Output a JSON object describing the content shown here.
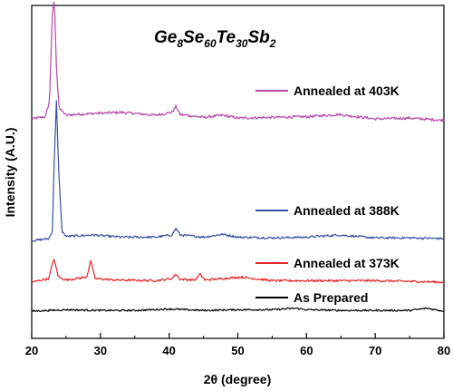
{
  "chart_data": {
    "type": "line",
    "title": {
      "base": [
        "Ge",
        "Se",
        "Te",
        "Sb"
      ],
      "subs": [
        "8",
        "60",
        "30",
        "2"
      ]
    },
    "xlabel": "2θ (degree)",
    "ylabel": "Intensity (A.U.)",
    "xlim": [
      20,
      80
    ],
    "xticks": [
      20,
      30,
      40,
      50,
      60,
      70,
      80
    ],
    "y_ticks_shown": false,
    "grid": false,
    "legend_position": "inline, right of each trace",
    "series": [
      {
        "name": "Annealed at 403K",
        "color": "#b547a8",
        "baseline": 2.7,
        "noise": 0.018,
        "x": [
          20,
          22,
          22.6,
          23.0,
          23.3,
          23.6,
          24.0,
          25,
          28,
          33,
          38,
          40.4,
          41.0,
          41.6,
          45,
          47.8,
          50,
          55,
          60,
          64.7,
          70,
          75,
          80
        ],
        "y": [
          2.7,
          2.73,
          2.95,
          4.15,
          4.33,
          3.4,
          2.85,
          2.75,
          2.77,
          2.79,
          2.75,
          2.79,
          2.87,
          2.76,
          2.72,
          2.75,
          2.71,
          2.72,
          2.73,
          2.76,
          2.7,
          2.71,
          2.68
        ]
      },
      {
        "name": "Annealed at 388K",
        "color": "#3a4fa0",
        "baseline": 1.05,
        "noise": 0.015,
        "x": [
          20,
          22.5,
          23.0,
          23.3,
          23.6,
          23.9,
          24.4,
          25,
          29,
          33,
          38,
          40.4,
          41.0,
          41.6,
          45,
          47.8,
          50,
          55,
          60,
          64.7,
          70,
          75,
          80
        ],
        "y": [
          1.02,
          1.05,
          1.15,
          2.2,
          2.95,
          2.05,
          1.15,
          1.08,
          1.1,
          1.07,
          1.07,
          1.1,
          1.19,
          1.1,
          1.07,
          1.11,
          1.07,
          1.06,
          1.07,
          1.1,
          1.06,
          1.06,
          1.05
        ]
      },
      {
        "name": "Annealed at 373K",
        "color": "#e2262b",
        "baseline": 0.48,
        "noise": 0.015,
        "x": [
          20,
          22.5,
          23.2,
          23.9,
          25,
          28.0,
          28.6,
          29.2,
          32,
          38,
          40.4,
          41.0,
          41.6,
          43.8,
          44.5,
          45.2,
          50.5,
          55,
          60,
          65,
          70,
          75,
          80
        ],
        "y": [
          0.45,
          0.5,
          0.78,
          0.52,
          0.48,
          0.52,
          0.75,
          0.5,
          0.48,
          0.47,
          0.5,
          0.56,
          0.49,
          0.48,
          0.56,
          0.48,
          0.52,
          0.47,
          0.47,
          0.47,
          0.47,
          0.46,
          0.45
        ]
      },
      {
        "name": "As Prepared",
        "color": "#000000",
        "baseline": 0.06,
        "noise": 0.012,
        "x": [
          20,
          25,
          30,
          35,
          40,
          45,
          50,
          55,
          58.5,
          60,
          65,
          70,
          75,
          77.5,
          80
        ],
        "y": [
          0.05,
          0.07,
          0.06,
          0.06,
          0.08,
          0.06,
          0.07,
          0.07,
          0.09,
          0.07,
          0.06,
          0.06,
          0.06,
          0.09,
          0.05
        ]
      }
    ]
  }
}
